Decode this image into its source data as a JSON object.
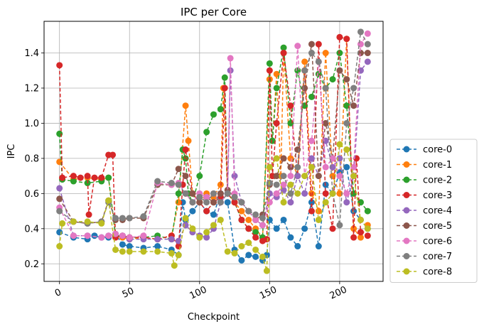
{
  "chart_data": {
    "type": "line",
    "title": "IPC per Core",
    "xlabel": "Checkpoint",
    "ylabel": "IPC",
    "xlim": [
      -11,
      231
    ],
    "ylim": [
      0.1,
      1.58
    ],
    "xticks": [
      0,
      50,
      100,
      150,
      200
    ],
    "yticks": [
      0.2,
      0.4,
      0.6,
      0.8,
      1.0,
      1.2,
      1.4
    ],
    "xtick_labels": [
      "0",
      "50",
      "100",
      "150",
      "200"
    ],
    "ytick_labels": [
      "0.2",
      "0.4",
      "0.6",
      "0.8",
      "1.0",
      "1.2",
      "1.4"
    ],
    "grid": true,
    "legend_position": "outside-right",
    "series": [
      {
        "name": "core-0",
        "color": "#1f77b4",
        "x": [
          0,
          10,
          20,
          25,
          30,
          35,
          40,
          45,
          50,
          60,
          70,
          80,
          85,
          88,
          90,
          95,
          100,
          105,
          110,
          115,
          120,
          125,
          130,
          135,
          140,
          145,
          148,
          150,
          155,
          160,
          165,
          170,
          175,
          180,
          185,
          190,
          195,
          200,
          205,
          210,
          215,
          220
        ],
        "y": [
          0.38,
          0.35,
          0.34,
          0.36,
          0.35,
          0.35,
          0.37,
          0.31,
          0.3,
          0.29,
          0.3,
          0.28,
          0.25,
          0.55,
          0.45,
          0.5,
          0.55,
          0.5,
          0.48,
          0.6,
          0.55,
          0.28,
          0.22,
          0.25,
          0.24,
          0.22,
          0.25,
          0.45,
          0.4,
          0.45,
          0.35,
          0.3,
          0.4,
          0.55,
          0.3,
          0.65,
          0.6,
          0.72,
          0.75,
          0.5,
          0.45,
          0.4
        ]
      },
      {
        "name": "core-1",
        "color": "#ff7f0e",
        "x": [
          0,
          10,
          20,
          30,
          35,
          40,
          45,
          50,
          60,
          70,
          80,
          85,
          90,
          92,
          95,
          100,
          105,
          110,
          115,
          117,
          120,
          125,
          130,
          135,
          140,
          145,
          150,
          152,
          155,
          158,
          160,
          165,
          170,
          175,
          180,
          185,
          190,
          195,
          200,
          205,
          210,
          215,
          220
        ],
        "y": [
          0.78,
          0.68,
          0.69,
          0.68,
          0.69,
          0.36,
          0.35,
          0.34,
          0.35,
          0.34,
          0.36,
          0.55,
          1.1,
          0.9,
          0.6,
          0.55,
          0.6,
          0.58,
          0.65,
          1.2,
          0.6,
          0.55,
          0.5,
          0.45,
          0.4,
          0.35,
          1.25,
          0.9,
          1.28,
          0.7,
          1.4,
          0.8,
          0.7,
          1.35,
          0.6,
          0.5,
          1.4,
          0.7,
          0.6,
          1.48,
          0.4,
          0.35,
          0.42
        ]
      },
      {
        "name": "core-2",
        "color": "#2ca02c",
        "x": [
          0,
          2,
          10,
          20,
          30,
          35,
          40,
          45,
          50,
          60,
          70,
          80,
          85,
          88,
          90,
          92,
          95,
          100,
          105,
          110,
          115,
          118,
          120,
          125,
          130,
          135,
          140,
          145,
          150,
          152,
          155,
          160,
          165,
          170,
          175,
          180,
          185,
          190,
          195,
          200,
          205,
          210,
          215,
          220
        ],
        "y": [
          0.94,
          0.68,
          0.67,
          0.66,
          0.67,
          0.69,
          0.36,
          0.36,
          0.35,
          0.35,
          0.36,
          0.34,
          0.6,
          0.85,
          0.8,
          0.6,
          0.55,
          0.7,
          0.95,
          1.05,
          1.08,
          1.26,
          0.6,
          0.55,
          0.45,
          0.4,
          0.38,
          0.35,
          1.34,
          0.9,
          1.2,
          1.43,
          1.0,
          1.3,
          1.1,
          1.15,
          1.28,
          1.2,
          1.25,
          1.4,
          1.1,
          0.6,
          0.55,
          0.5
        ]
      },
      {
        "name": "core-3",
        "color": "#d62728",
        "x": [
          0,
          2,
          10,
          15,
          20,
          21,
          25,
          30,
          35,
          38,
          40,
          45,
          50,
          60,
          70,
          80,
          85,
          88,
          90,
          95,
          100,
          105,
          110,
          115,
          118,
          120,
          125,
          130,
          135,
          140,
          145,
          148,
          150,
          152,
          155,
          160,
          165,
          170,
          175,
          180,
          185,
          190,
          195,
          200,
          205,
          210,
          212,
          215,
          220
        ],
        "y": [
          1.33,
          0.69,
          0.7,
          0.69,
          0.7,
          0.48,
          0.69,
          0.69,
          0.82,
          0.82,
          0.35,
          0.36,
          0.35,
          0.35,
          0.34,
          0.36,
          0.3,
          0.65,
          0.85,
          0.6,
          0.55,
          0.5,
          0.55,
          0.58,
          1.2,
          0.6,
          0.55,
          0.45,
          0.4,
          0.35,
          0.33,
          0.34,
          1.3,
          0.7,
          1.0,
          1.4,
          1.1,
          0.7,
          1.3,
          0.5,
          1.45,
          0.6,
          0.4,
          1.49,
          1.48,
          0.35,
          0.8,
          0.38,
          0.36
        ]
      },
      {
        "name": "core-4",
        "color": "#9467bd",
        "x": [
          0,
          10,
          20,
          30,
          35,
          40,
          45,
          50,
          60,
          70,
          80,
          85,
          90,
          95,
          100,
          105,
          110,
          115,
          120,
          122,
          125,
          130,
          135,
          140,
          145,
          150,
          155,
          160,
          165,
          170,
          175,
          180,
          185,
          190,
          195,
          200,
          205,
          210,
          215,
          220
        ],
        "y": [
          0.63,
          0.36,
          0.36,
          0.35,
          0.36,
          0.37,
          0.36,
          0.34,
          0.34,
          0.34,
          0.34,
          0.33,
          0.42,
          0.38,
          0.36,
          0.35,
          0.4,
          0.55,
          0.6,
          1.3,
          0.7,
          0.55,
          0.5,
          0.45,
          0.42,
          0.6,
          0.58,
          0.62,
          0.55,
          0.7,
          0.6,
          0.8,
          0.7,
          0.9,
          0.75,
          0.8,
          0.55,
          0.7,
          1.3,
          1.35
        ]
      },
      {
        "name": "core-5",
        "color": "#8c564b",
        "x": [
          0,
          10,
          20,
          30,
          35,
          40,
          45,
          50,
          60,
          70,
          80,
          85,
          90,
          95,
          100,
          105,
          110,
          115,
          120,
          125,
          130,
          135,
          140,
          145,
          150,
          155,
          160,
          165,
          170,
          175,
          180,
          185,
          190,
          195,
          200,
          205,
          210,
          215,
          220
        ],
        "y": [
          0.57,
          0.44,
          0.43,
          0.44,
          0.56,
          0.45,
          0.45,
          0.46,
          0.46,
          0.65,
          0.65,
          0.74,
          0.7,
          0.6,
          0.55,
          0.58,
          0.55,
          0.6,
          0.62,
          0.58,
          0.55,
          0.5,
          0.45,
          0.48,
          0.65,
          0.7,
          0.8,
          0.75,
          0.85,
          1.2,
          1.45,
          0.7,
          1.0,
          0.8,
          1.3,
          1.25,
          1.1,
          1.4,
          1.4
        ]
      },
      {
        "name": "core-6",
        "color": "#e377c2",
        "x": [
          0,
          10,
          20,
          30,
          35,
          40,
          45,
          50,
          60,
          70,
          80,
          85,
          90,
          95,
          100,
          105,
          110,
          115,
          120,
          122,
          125,
          130,
          135,
          140,
          145,
          150,
          155,
          160,
          165,
          170,
          175,
          180,
          185,
          190,
          195,
          200,
          205,
          210,
          215,
          220
        ],
        "y": [
          0.52,
          0.36,
          0.36,
          0.35,
          0.36,
          0.37,
          0.36,
          0.35,
          0.36,
          0.66,
          0.65,
          0.66,
          0.6,
          0.55,
          0.6,
          0.58,
          0.6,
          0.55,
          0.6,
          1.37,
          0.6,
          0.55,
          0.5,
          0.45,
          0.42,
          0.55,
          0.6,
          0.65,
          0.7,
          1.44,
          0.7,
          0.9,
          1.35,
          0.75,
          0.8,
          0.7,
          0.6,
          0.75,
          1.45,
          1.51
        ]
      },
      {
        "name": "core-7",
        "color": "#7f7f7f",
        "x": [
          0,
          10,
          20,
          30,
          35,
          40,
          45,
          50,
          60,
          70,
          80,
          85,
          90,
          95,
          100,
          105,
          110,
          115,
          120,
          125,
          130,
          135,
          140,
          145,
          150,
          155,
          160,
          165,
          170,
          175,
          180,
          185,
          190,
          195,
          200,
          205,
          210,
          215,
          220
        ],
        "y": [
          0.5,
          0.44,
          0.43,
          0.44,
          0.55,
          0.46,
          0.46,
          0.46,
          0.47,
          0.67,
          0.66,
          0.65,
          0.6,
          0.55,
          0.58,
          0.55,
          0.6,
          0.55,
          0.6,
          0.58,
          0.55,
          0.5,
          0.48,
          0.46,
          0.66,
          0.65,
          0.7,
          0.6,
          0.75,
          1.3,
          1.4,
          1.35,
          1.2,
          0.6,
          0.42,
          1.0,
          1.2,
          1.52,
          1.45
        ]
      },
      {
        "name": "core-8",
        "color": "#bcbd22",
        "x": [
          0,
          2,
          10,
          20,
          30,
          35,
          40,
          45,
          50,
          60,
          70,
          80,
          82,
          85,
          90,
          95,
          100,
          105,
          110,
          115,
          120,
          125,
          130,
          135,
          140,
          145,
          148,
          150,
          155,
          160,
          165,
          170,
          175,
          180,
          185,
          190,
          195,
          200,
          205,
          210,
          215,
          220
        ],
        "y": [
          0.3,
          0.43,
          0.44,
          0.44,
          0.43,
          0.56,
          0.28,
          0.27,
          0.27,
          0.27,
          0.27,
          0.26,
          0.19,
          0.25,
          0.46,
          0.4,
          0.35,
          0.38,
          0.42,
          0.45,
          0.27,
          0.26,
          0.3,
          0.32,
          0.28,
          0.24,
          0.16,
          0.75,
          0.8,
          0.55,
          0.65,
          0.6,
          0.7,
          0.75,
          0.45,
          0.55,
          0.6,
          0.88,
          0.85,
          0.7,
          0.45,
          0.4
        ]
      }
    ]
  }
}
